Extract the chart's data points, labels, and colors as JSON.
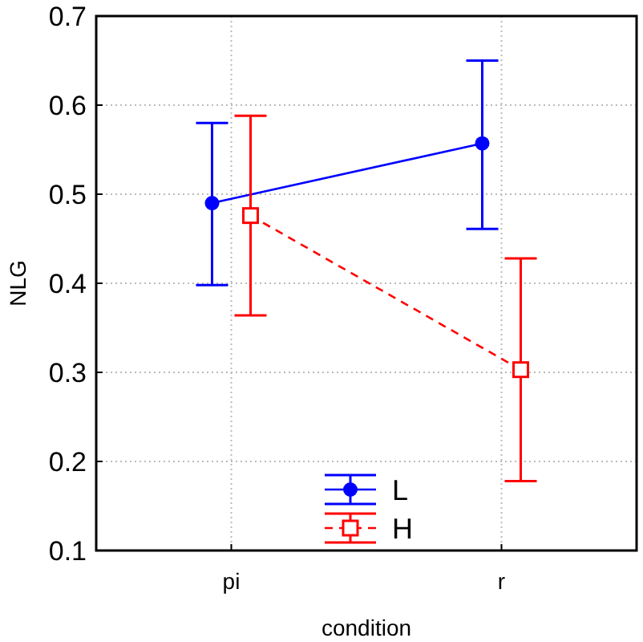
{
  "chart_data": {
    "type": "line",
    "xlabel": "condition",
    "ylabel": "NLG",
    "categories": [
      "pi",
      "r"
    ],
    "series": [
      {
        "name": "L",
        "color": "#0000ff",
        "values": [
          0.49,
          0.557
        ],
        "errors": [
          [
            0.398,
            0.58
          ],
          [
            0.461,
            0.65
          ]
        ],
        "marker": "circle",
        "line_style": "solid"
      },
      {
        "name": "H",
        "color": "#ff0000",
        "values": [
          0.476,
          0.303
        ],
        "errors": [
          [
            0.364,
            0.588
          ],
          [
            0.178,
            0.428
          ]
        ],
        "marker": "square",
        "line_style": "dashed"
      }
    ],
    "ylim": [
      0.1,
      0.7
    ],
    "yticks": [
      0.1,
      0.2,
      0.3,
      0.4,
      0.5,
      0.6,
      0.7
    ],
    "grid": true,
    "legend": "bottom"
  }
}
